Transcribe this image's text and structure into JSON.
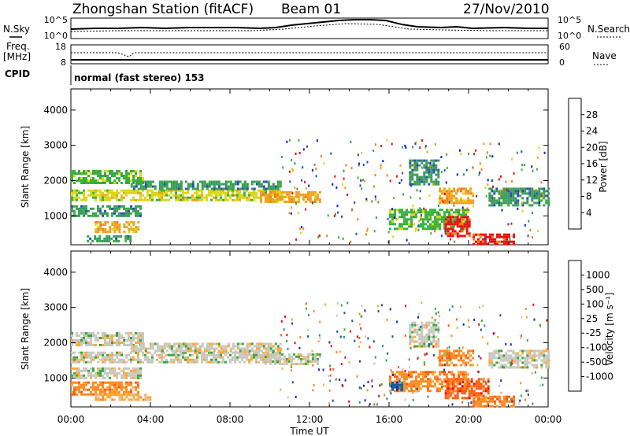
{
  "header": {
    "station": "Zhongshan Station (fitACF)",
    "beam": "Beam 01",
    "date": "27/Nov/2010"
  },
  "top_panels": {
    "nsky_label": "N.Sky",
    "nsearch_label": "N.Search",
    "nsky_ticks": [
      "10^5",
      "10^0"
    ],
    "freq_label_1": "Freq.",
    "freq_label_2": "[MHz]",
    "freq_ticks": [
      "18",
      "8"
    ],
    "nave_label": "Nave",
    "nave_ticks": [
      "60",
      "0"
    ],
    "cpid_label": "CPID",
    "cpid_text": "normal (fast stereo) 153"
  },
  "chart_data": [
    {
      "type": "heatmap",
      "name": "power",
      "ylabel": "Slant Range [km]",
      "xlabel": "",
      "colorbar_label": "Power [dB]",
      "colorbar_ticks": [
        "4",
        "8",
        "12",
        "16",
        "20",
        "24",
        "28"
      ],
      "colorbar_colors": [
        "#0a1ee8",
        "#2b4fb0",
        "#3a9a5a",
        "#3ab23a",
        "#d8d818",
        "#f0a020",
        "#ff7a10",
        "#e81010"
      ],
      "x_ticks": [
        "00:00",
        "04:00",
        "08:00",
        "12:00",
        "16:00",
        "20:00",
        "00:00"
      ],
      "x_hours": [
        0,
        24
      ],
      "y_ticks": [
        "1000",
        "2000",
        "3000",
        "4000"
      ],
      "ylim": [
        180,
        4600
      ],
      "blobs": [
        {
          "t0": 0.0,
          "t1": 3.6,
          "r0": 1950,
          "r1": 2300,
          "c": 3
        },
        {
          "t0": 0.0,
          "t1": 10.5,
          "r0": 1450,
          "r1": 1750,
          "c": 4
        },
        {
          "t0": 3.0,
          "t1": 10.5,
          "r0": 1750,
          "r1": 2000,
          "c": 2
        },
        {
          "t0": 0.0,
          "t1": 3.5,
          "r0": 1000,
          "r1": 1300,
          "c": 2
        },
        {
          "t0": 1.2,
          "t1": 3.4,
          "r0": 550,
          "r1": 850,
          "c": 5
        },
        {
          "t0": 0.8,
          "t1": 3.0,
          "r0": 300,
          "r1": 450,
          "c": 2
        },
        {
          "t0": 9.5,
          "t1": 12.5,
          "r0": 1400,
          "r1": 1700,
          "c": 5
        },
        {
          "t0": 16.0,
          "t1": 20.0,
          "r0": 650,
          "r1": 1200,
          "c": 3
        },
        {
          "t0": 18.5,
          "t1": 20.2,
          "r0": 1350,
          "r1": 1800,
          "c": 5
        },
        {
          "t0": 18.8,
          "t1": 20.0,
          "r0": 400,
          "r1": 1000,
          "c": 7
        },
        {
          "t0": 20.2,
          "t1": 22.3,
          "r0": 180,
          "r1": 500,
          "c": 7
        },
        {
          "t0": 21.0,
          "t1": 24.0,
          "r0": 1300,
          "r1": 1800,
          "c": 2
        },
        {
          "t0": 17.0,
          "t1": 18.5,
          "r0": 1900,
          "r1": 2600,
          "c": 2
        }
      ]
    },
    {
      "type": "heatmap",
      "name": "velocity",
      "ylabel": "Slant Range [km]",
      "xlabel": "Time UT",
      "colorbar_label": "Velocity [m s⁻¹]",
      "colorbar_ticks": [
        "-1000",
        "-500",
        "-100",
        "-25",
        "25",
        "100",
        "500",
        "1000"
      ],
      "colorbar_colors": [
        "#e81010",
        "#ff5a10",
        "#ff8a20",
        "#ffa838",
        "#c8c8c0",
        "#3aa83a",
        "#2a9a7a",
        "#1a5a9a",
        "#1a2ab8"
      ],
      "x_ticks": [
        "00:00",
        "04:00",
        "08:00",
        "12:00",
        "16:00",
        "20:00",
        "00:00"
      ],
      "x_hours": [
        0,
        24
      ],
      "y_ticks": [
        "1000",
        "2000",
        "3000",
        "4000"
      ],
      "ylim": [
        180,
        4600
      ],
      "blobs": [
        {
          "t0": 0.0,
          "t1": 3.6,
          "r0": 1950,
          "r1": 2300,
          "c": 4
        },
        {
          "t0": 0.0,
          "t1": 10.5,
          "r0": 1450,
          "r1": 1750,
          "c": 4
        },
        {
          "t0": 3.0,
          "t1": 10.5,
          "r0": 1750,
          "r1": 2000,
          "c": 4
        },
        {
          "t0": 0.0,
          "t1": 3.5,
          "r0": 1000,
          "r1": 1300,
          "c": 4
        },
        {
          "t0": 0.0,
          "t1": 3.4,
          "r0": 550,
          "r1": 900,
          "c": 2
        },
        {
          "t0": 1.2,
          "t1": 4.0,
          "r0": 350,
          "r1": 550,
          "c": 3
        },
        {
          "t0": 9.5,
          "t1": 12.5,
          "r0": 1400,
          "r1": 1700,
          "c": 4
        },
        {
          "t0": 16.0,
          "t1": 20.0,
          "r0": 650,
          "r1": 1200,
          "c": 2
        },
        {
          "t0": 18.5,
          "t1": 20.2,
          "r0": 1350,
          "r1": 1800,
          "c": 2
        },
        {
          "t0": 18.8,
          "t1": 21.0,
          "r0": 400,
          "r1": 1000,
          "c": 1
        },
        {
          "t0": 20.2,
          "t1": 22.3,
          "r0": 180,
          "r1": 500,
          "c": 2
        },
        {
          "t0": 21.0,
          "t1": 24.0,
          "r0": 1300,
          "r1": 1800,
          "c": 4
        },
        {
          "t0": 17.0,
          "t1": 18.5,
          "r0": 1900,
          "r1": 2600,
          "c": 4
        },
        {
          "t0": 16.0,
          "t1": 16.6,
          "r0": 650,
          "r1": 900,
          "c": 7
        }
      ]
    }
  ]
}
